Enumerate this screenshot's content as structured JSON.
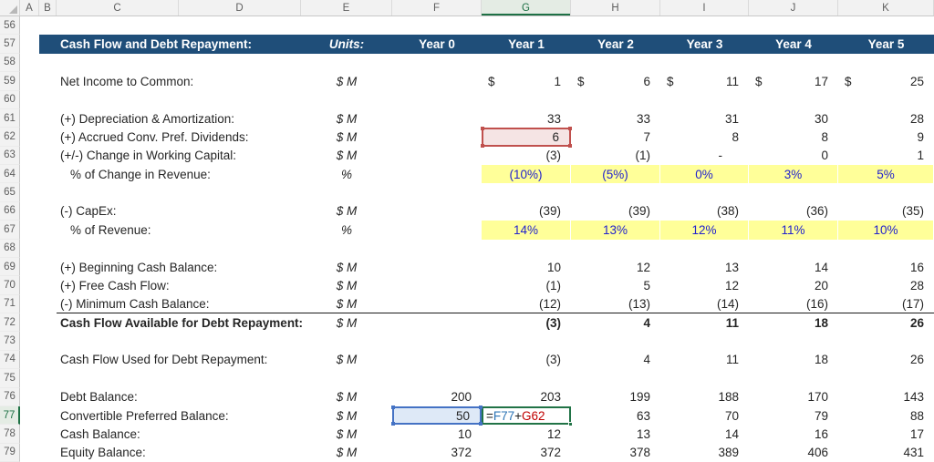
{
  "app": {
    "name": "spreadsheet",
    "gridlines": false
  },
  "column_headers": [
    "A",
    "B",
    "C",
    "D",
    "E",
    "F",
    "G",
    "H",
    "I",
    "J",
    "K"
  ],
  "selection": {
    "selected_column": "G",
    "selected_row": 77,
    "active_cell": "G77",
    "edit_mode": true,
    "referenced_cells": [
      {
        "cell": "F77",
        "highlight": "blue"
      },
      {
        "cell": "G62",
        "highlight": "red"
      }
    ]
  },
  "formula": {
    "cell": "G77",
    "parts": [
      {
        "text": "=",
        "color": "op"
      },
      {
        "text": "F77",
        "color": "blue"
      },
      {
        "text": "+",
        "color": "op"
      },
      {
        "text": "G62",
        "color": "red"
      }
    ]
  },
  "section_header": {
    "row": 57,
    "title": "Cash Flow and Debt Repayment:",
    "units_label": "Units:",
    "year_labels": [
      "Year 0",
      "Year 1",
      "Year 2",
      "Year 3",
      "Year 4",
      "Year 5"
    ]
  },
  "colors": {
    "section_header_bg": "#1F4E79",
    "section_header_text": "#FFFFFF",
    "input_cell_bg": "#FFFF99",
    "input_cell_text": "#2222CC",
    "red_reference_border": "#C0504D",
    "red_reference_fill": "#F5E4E4",
    "blue_reference_border": "#4472C4",
    "blue_reference_fill": "#DEE9F7",
    "edit_cell_border": "#217346",
    "selected_header_accent": "#1E7145"
  },
  "rows": [
    {
      "n": 56,
      "type": "blank"
    },
    {
      "n": 57,
      "type": "section_header"
    },
    {
      "n": 58,
      "type": "blank"
    },
    {
      "n": 59,
      "label": "Net Income to Common:",
      "units": "$ M",
      "format": "currency",
      "cells": [
        "",
        "1",
        "6",
        "11",
        "17",
        "25"
      ]
    },
    {
      "n": 60,
      "type": "blank"
    },
    {
      "n": 61,
      "label": "(+) Depreciation & Amortization:",
      "units": "$ M",
      "cells": [
        "",
        "33",
        "33",
        "31",
        "30",
        "28"
      ]
    },
    {
      "n": 62,
      "label": "(+) Accrued Conv. Pref. Dividends:",
      "units": "$ M",
      "cells": [
        "",
        {
          "v": "6",
          "special": "red_ref"
        },
        "7",
        "8",
        "8",
        "9"
      ]
    },
    {
      "n": 63,
      "label": "(+/-) Change in Working Capital:",
      "units": "$ M",
      "cells": [
        "",
        "(3)",
        "(1)",
        "-",
        "0",
        "1"
      ]
    },
    {
      "n": 64,
      "label": "% of Change in Revenue:",
      "indent": true,
      "units": "%",
      "format": "percent_input",
      "cells": [
        "",
        "(10%)",
        "(5%)",
        "0%",
        "3%",
        "5%"
      ]
    },
    {
      "n": 65,
      "type": "blank"
    },
    {
      "n": 66,
      "label": "(-) CapEx:",
      "units": "$ M",
      "cells": [
        "",
        "(39)",
        "(39)",
        "(38)",
        "(36)",
        "(35)"
      ]
    },
    {
      "n": 67,
      "label": "% of Revenue:",
      "indent": true,
      "units": "%",
      "format": "percent_input",
      "cells": [
        "",
        "14%",
        "13%",
        "12%",
        "11%",
        "10%"
      ]
    },
    {
      "n": 68,
      "type": "blank"
    },
    {
      "n": 69,
      "label": "(+) Beginning Cash Balance:",
      "units": "$ M",
      "cells": [
        "",
        "10",
        "12",
        "13",
        "14",
        "16"
      ]
    },
    {
      "n": 70,
      "label": "(+) Free Cash Flow:",
      "units": "$ M",
      "cells": [
        "",
        "(1)",
        "5",
        "12",
        "20",
        "28"
      ]
    },
    {
      "n": 71,
      "label": "(-) Minimum Cash Balance:",
      "units": "$ M",
      "underline": true,
      "cells": [
        "",
        "(12)",
        "(13)",
        "(14)",
        "(16)",
        "(17)"
      ]
    },
    {
      "n": 72,
      "label": "Cash Flow Available for Debt Repayment:",
      "bold": true,
      "units": "$ M",
      "cells": [
        "",
        "(3)",
        "4",
        "11",
        "18",
        "26"
      ]
    },
    {
      "n": 73,
      "type": "blank"
    },
    {
      "n": 74,
      "label": "Cash Flow Used for Debt Repayment:",
      "units": "$ M",
      "cells": [
        "",
        "(3)",
        "4",
        "11",
        "18",
        "26"
      ]
    },
    {
      "n": 75,
      "type": "blank"
    },
    {
      "n": 76,
      "label": "Debt Balance:",
      "units": "$ M",
      "cells": [
        "200",
        "203",
        "199",
        "188",
        "170",
        "143"
      ]
    },
    {
      "n": 77,
      "label": "Convertible Preferred Balance:",
      "units": "$ M",
      "cells": [
        {
          "v": "50",
          "special": "blue_ref"
        },
        {
          "special": "formula"
        },
        "63",
        "70",
        "79",
        "88"
      ]
    },
    {
      "n": 78,
      "label": "Cash Balance:",
      "units": "$ M",
      "cells": [
        "10",
        "12",
        "13",
        "14",
        "16",
        "17"
      ]
    },
    {
      "n": 79,
      "label": "Equity Balance:",
      "units": "$ M",
      "cells": [
        "372",
        "372",
        "378",
        "389",
        "406",
        "431"
      ]
    }
  ]
}
